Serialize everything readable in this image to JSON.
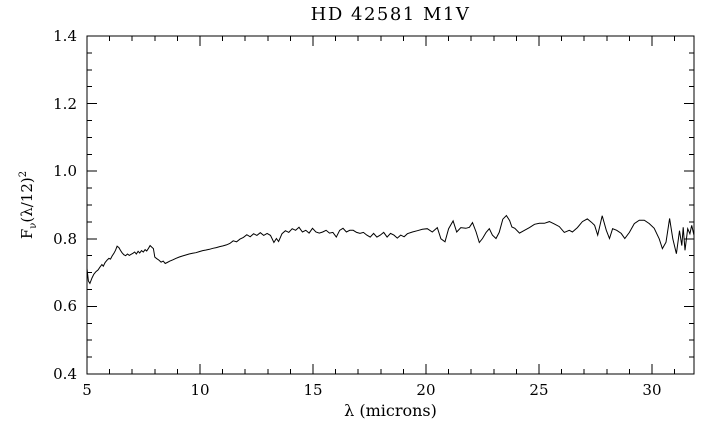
{
  "chart_data": {
    "type": "line",
    "title": "HD 42581 M1V",
    "xlabel": "λ (microns)",
    "ylabel": "Fν(λ/12)²",
    "ylabel_parts": {
      "base": "F",
      "sub": "ν",
      "mid": "(λ/12)",
      "sup": "2"
    },
    "xlim": [
      5,
      31.86
    ],
    "ylim": [
      0.4,
      1.4
    ],
    "grid": false,
    "legend": "none",
    "line_color": "#000000",
    "background_color": "#ffffff",
    "xticks": {
      "values": [
        5,
        10,
        15,
        20,
        25,
        30
      ],
      "labels": [
        "5",
        "10",
        "15",
        "20",
        "25",
        "30"
      ]
    },
    "yticks": {
      "values": [
        0.4,
        0.6,
        0.8,
        1.0,
        1.2,
        1.4
      ],
      "labels": [
        "0.4",
        "0.6",
        "0.8",
        "1.0",
        "1.2",
        "1.4"
      ]
    },
    "x_minor": [
      6,
      7,
      8,
      9,
      11,
      12,
      13,
      14,
      16,
      17,
      18,
      19,
      21,
      22,
      23,
      24,
      26,
      27,
      28,
      29,
      31
    ],
    "y_minor": [
      0.45,
      0.5,
      0.55,
      0.65,
      0.7,
      0.75,
      0.85,
      0.9,
      0.95,
      1.05,
      1.1,
      1.15,
      1.25,
      1.3,
      1.35
    ],
    "x": [
      5.0,
      5.06,
      5.13,
      5.22,
      5.3,
      5.4,
      5.49,
      5.57,
      5.66,
      5.72,
      5.8,
      5.89,
      5.97,
      6.04,
      6.11,
      6.19,
      6.26,
      6.33,
      6.41,
      6.48,
      6.55,
      6.63,
      6.71,
      6.79,
      6.87,
      6.95,
      7.03,
      7.11,
      7.18,
      7.26,
      7.33,
      7.41,
      7.49,
      7.57,
      7.64,
      7.72,
      7.79,
      7.87,
      7.94,
      8.0,
      8.09,
      8.18,
      8.28,
      8.37,
      8.46,
      8.55,
      8.67,
      8.8,
      8.93,
      9.07,
      9.22,
      9.37,
      9.52,
      9.67,
      9.82,
      9.97,
      10.12,
      10.27,
      10.42,
      10.57,
      10.72,
      10.87,
      11.02,
      11.17,
      11.32,
      11.47,
      11.62,
      11.77,
      11.92,
      12.07,
      12.22,
      12.37,
      12.52,
      12.67,
      12.82,
      12.97,
      13.12,
      13.27,
      13.38,
      13.48,
      13.63,
      13.78,
      13.93,
      14.08,
      14.23,
      14.38,
      14.53,
      14.68,
      14.83,
      14.98,
      15.13,
      15.28,
      15.43,
      15.58,
      15.73,
      15.88,
      16.03,
      16.18,
      16.33,
      16.48,
      16.63,
      16.78,
      16.93,
      17.08,
      17.23,
      17.38,
      17.53,
      17.68,
      17.83,
      17.98,
      18.13,
      18.28,
      18.43,
      18.58,
      18.73,
      18.88,
      19.03,
      19.18,
      19.4,
      19.62,
      19.84,
      20.06,
      20.28,
      20.5,
      20.66,
      20.84,
      21.0,
      21.2,
      21.36,
      21.54,
      21.76,
      21.92,
      22.06,
      22.22,
      22.36,
      22.5,
      22.66,
      22.8,
      22.94,
      23.1,
      23.24,
      23.4,
      23.56,
      23.7,
      23.8,
      23.93,
      24.14,
      24.36,
      24.58,
      24.8,
      25.02,
      25.24,
      25.46,
      25.68,
      25.9,
      26.12,
      26.34,
      26.48,
      26.7,
      26.92,
      27.14,
      27.32,
      27.46,
      27.6,
      27.8,
      27.98,
      28.12,
      28.26,
      28.44,
      28.64,
      28.8,
      29.0,
      29.22,
      29.44,
      29.66,
      29.88,
      30.1,
      30.32,
      30.46,
      30.62,
      30.78,
      30.92,
      31.08,
      31.22,
      31.32,
      31.38,
      31.46,
      31.58,
      31.68,
      31.76,
      31.86
    ],
    "y": [
      0.712,
      0.675,
      0.668,
      0.684,
      0.695,
      0.703,
      0.708,
      0.716,
      0.724,
      0.719,
      0.73,
      0.737,
      0.742,
      0.74,
      0.749,
      0.757,
      0.766,
      0.778,
      0.774,
      0.766,
      0.759,
      0.753,
      0.75,
      0.755,
      0.751,
      0.754,
      0.757,
      0.761,
      0.755,
      0.763,
      0.758,
      0.765,
      0.761,
      0.768,
      0.764,
      0.772,
      0.78,
      0.775,
      0.771,
      0.746,
      0.741,
      0.737,
      0.731,
      0.734,
      0.727,
      0.73,
      0.734,
      0.738,
      0.742,
      0.746,
      0.749,
      0.752,
      0.755,
      0.757,
      0.759,
      0.762,
      0.765,
      0.767,
      0.769,
      0.772,
      0.774,
      0.777,
      0.779,
      0.782,
      0.786,
      0.794,
      0.791,
      0.799,
      0.804,
      0.812,
      0.806,
      0.815,
      0.81,
      0.818,
      0.81,
      0.816,
      0.81,
      0.789,
      0.801,
      0.792,
      0.815,
      0.824,
      0.819,
      0.83,
      0.825,
      0.834,
      0.82,
      0.825,
      0.817,
      0.831,
      0.82,
      0.817,
      0.82,
      0.825,
      0.817,
      0.819,
      0.805,
      0.825,
      0.831,
      0.82,
      0.825,
      0.825,
      0.819,
      0.816,
      0.819,
      0.811,
      0.805,
      0.816,
      0.805,
      0.811,
      0.819,
      0.805,
      0.816,
      0.811,
      0.802,
      0.811,
      0.806,
      0.815,
      0.82,
      0.824,
      0.828,
      0.83,
      0.82,
      0.833,
      0.8,
      0.791,
      0.83,
      0.853,
      0.82,
      0.833,
      0.831,
      0.834,
      0.848,
      0.82,
      0.789,
      0.801,
      0.819,
      0.83,
      0.811,
      0.801,
      0.819,
      0.858,
      0.869,
      0.854,
      0.835,
      0.831,
      0.817,
      0.825,
      0.833,
      0.843,
      0.846,
      0.846,
      0.851,
      0.844,
      0.836,
      0.819,
      0.825,
      0.82,
      0.833,
      0.851,
      0.859,
      0.849,
      0.84,
      0.811,
      0.868,
      0.825,
      0.801,
      0.83,
      0.825,
      0.816,
      0.801,
      0.819,
      0.845,
      0.855,
      0.855,
      0.845,
      0.831,
      0.8,
      0.771,
      0.79,
      0.86,
      0.8,
      0.756,
      0.824,
      0.78,
      0.834,
      0.766,
      0.83,
      0.815,
      0.84,
      0.81
    ]
  }
}
